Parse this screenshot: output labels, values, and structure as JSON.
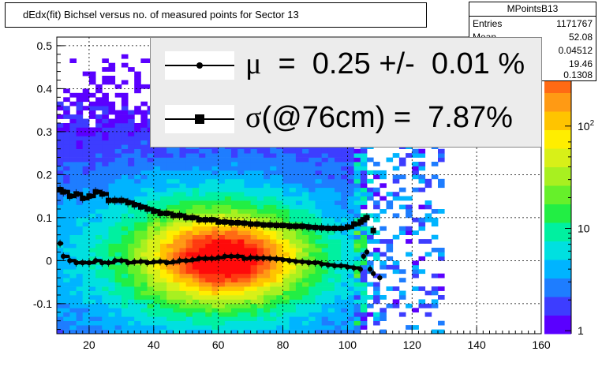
{
  "title": "dEdx(fit) Bichsel versus no. of measured points for Sector 13",
  "stats": {
    "name": "MPointsB13",
    "rows": [
      {
        "key": "Entries",
        "value": "1171767"
      },
      {
        "key": "Mean",
        "value": "52.08"
      },
      {
        "key": "Mean y",
        "value": "0.04512"
      },
      {
        "key": "RMS",
        "value": "19.46"
      },
      {
        "key": "RMS y",
        "value": "0.1308"
      }
    ]
  },
  "legend": {
    "mu_symbol": "μ",
    "mu_text": "  =  0.25 +/-  0.01 %",
    "sigma_symbol": "σ",
    "sigma_text": "(@76cm) =  7.87%"
  },
  "colors": {
    "mean_marker": "#000000",
    "sigma_marker": "#000000",
    "legend_bg": "#ececec"
  },
  "chart_data": {
    "type": "heatmap",
    "title": "dEdx(fit) Bichsel versus no. of measured points for Sector 13",
    "xlim": [
      10,
      160
    ],
    "ylim": [
      -0.17,
      0.52
    ],
    "x_ticks": [
      20,
      40,
      60,
      80,
      100,
      120,
      140,
      160
    ],
    "y_ticks": [
      -0.1,
      0,
      0.1,
      0.2,
      0.3,
      0.4,
      0.5
    ],
    "z_ticks": [
      "1",
      "10",
      "10^2"
    ],
    "z_scale": "log",
    "grid": true,
    "series": [
      {
        "name": "mean",
        "marker": "circle",
        "x": [
          11,
          12,
          14,
          16,
          18,
          20,
          22,
          24,
          26,
          28,
          30,
          32,
          34,
          36,
          38,
          40,
          42,
          44,
          46,
          48,
          50,
          52,
          54,
          56,
          58,
          60,
          62,
          64,
          66,
          68,
          70,
          72,
          74,
          76,
          78,
          80,
          82,
          84,
          86,
          88,
          90,
          92,
          94,
          96,
          98,
          100,
          102,
          104,
          105,
          106,
          107,
          108,
          110
        ],
        "y": [
          0.04,
          0.01,
          0.0,
          -0.005,
          -0.005,
          -0.005,
          0.0,
          -0.005,
          -0.005,
          0.0,
          0.0,
          -0.005,
          -0.003,
          -0.002,
          -0.005,
          -0.003,
          -0.002,
          -0.005,
          -0.003,
          0.0,
          0.0,
          0.002,
          0.005,
          0.005,
          0.005,
          0.007,
          0.01,
          0.01,
          0.01,
          0.005,
          0.007,
          0.006,
          0.006,
          0.005,
          0.004,
          0.002,
          0.0,
          -0.002,
          -0.003,
          -0.005,
          -0.005,
          -0.008,
          -0.01,
          -0.012,
          -0.012,
          -0.015,
          -0.017,
          -0.02,
          0.01,
          0.02,
          -0.02,
          -0.03,
          -0.04
        ]
      },
      {
        "name": "sigma",
        "marker": "square",
        "x": [
          11,
          12,
          14,
          16,
          18,
          20,
          22,
          24,
          26,
          28,
          30,
          32,
          34,
          36,
          38,
          40,
          42,
          44,
          46,
          48,
          50,
          52,
          54,
          56,
          58,
          60,
          62,
          64,
          66,
          68,
          70,
          72,
          74,
          76,
          78,
          80,
          82,
          84,
          86,
          88,
          90,
          92,
          94,
          96,
          98,
          100,
          102,
          104,
          105,
          106,
          108
        ],
        "y": [
          0.165,
          0.16,
          0.15,
          0.155,
          0.145,
          0.15,
          0.16,
          0.155,
          0.14,
          0.14,
          0.14,
          0.135,
          0.13,
          0.125,
          0.12,
          0.115,
          0.11,
          0.11,
          0.105,
          0.105,
          0.1,
          0.1,
          0.095,
          0.095,
          0.095,
          0.09,
          0.09,
          0.088,
          0.088,
          0.087,
          0.085,
          0.085,
          0.083,
          0.083,
          0.082,
          0.082,
          0.08,
          0.08,
          0.08,
          0.078,
          0.077,
          0.076,
          0.075,
          0.075,
          0.075,
          0.078,
          0.085,
          0.09,
          0.095,
          0.1,
          0.07
        ]
      }
    ]
  }
}
